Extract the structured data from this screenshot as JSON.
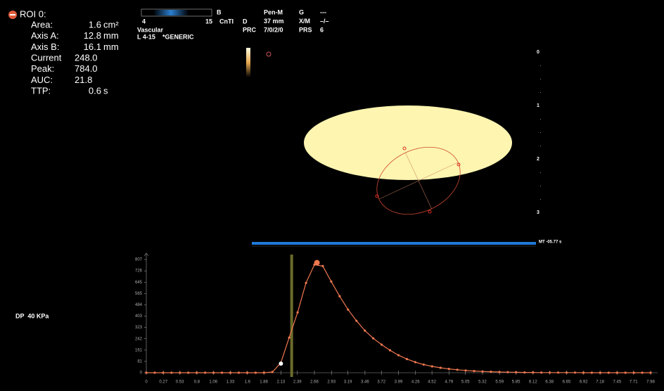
{
  "roi": {
    "title": "ROI 0:",
    "rows": [
      {
        "label": "Area:",
        "value": "1.6",
        "unit": "cm²"
      },
      {
        "label": "Axis A:",
        "value": "12.8",
        "unit": "mm"
      },
      {
        "label": "Axis B:",
        "value": "16.1",
        "unit": "mm"
      },
      {
        "label": "Current",
        "value": "248.0"
      },
      {
        "label": "Peak:",
        "value": "784.0"
      },
      {
        "label": "AUC:",
        "value": "21.8"
      },
      {
        "label": "TTP:",
        "value": "0.6",
        "unit": "s"
      }
    ]
  },
  "header": {
    "scale_min": "4",
    "scale_max": "15",
    "mode": "B",
    "contrast": "CnTI",
    "preset": "Vascular",
    "probe": "L 4-15",
    "application": "*GENERIC",
    "labels_1": [
      "D",
      "PRC"
    ],
    "values_1": [
      "Pen-M",
      "37 mm",
      "7/0/2/0"
    ],
    "labels_2": [
      "G",
      "X/M",
      "PRS"
    ],
    "values_2": [
      "---",
      "–/–",
      "6"
    ]
  },
  "depth": [
    "0",
    "1",
    "2",
    "3"
  ],
  "timeline": "MT -05.77 s",
  "pressure": "DP  40 KPa",
  "chart_data": {
    "type": "line",
    "x": [
      0,
      0.133,
      0.266,
      0.399,
      0.532,
      0.665,
      0.798,
      0.931,
      1.064,
      1.197,
      1.33,
      1.463,
      1.596,
      1.729,
      1.862,
      1.995,
      2.128,
      2.261,
      2.394,
      2.527,
      2.66,
      2.793,
      2.926,
      3.059,
      3.192,
      3.325,
      3.458,
      3.591,
      3.724,
      3.857,
      3.99,
      4.123,
      4.256,
      4.389,
      4.522,
      4.655,
      4.788,
      4.921,
      5.054,
      5.187,
      5.32,
      5.453,
      5.586,
      5.719,
      5.852,
      5.985,
      6.118,
      6.251,
      6.384,
      6.517,
      6.65,
      6.783,
      6.916,
      7.049,
      7.182,
      7.315,
      7.448,
      7.581,
      7.714,
      7.847,
      7.98
    ],
    "series": [
      {
        "color": "#f07850",
        "values": [
          0,
          0,
          0,
          0,
          0,
          0,
          0,
          0,
          0,
          0,
          0,
          0,
          0,
          0,
          0,
          5,
          70,
          250,
          430,
          640,
          770,
          760,
          650,
          545,
          450,
          370,
          300,
          245,
          200,
          160,
          125,
          97,
          75,
          58,
          45,
          35,
          27,
          21,
          16,
          12,
          9,
          7,
          5,
          4,
          3,
          2,
          2,
          1,
          1,
          1,
          1,
          1,
          0,
          0,
          0,
          0,
          0,
          0,
          0,
          0,
          0
        ]
      }
    ],
    "peak": {
      "x": 2.7,
      "y": 784
    },
    "start_point": {
      "x": 2.13,
      "y": 65
    },
    "marker_x": 2.3,
    "xlim": [
      0,
      7.98
    ],
    "ylim": [
      0,
      807
    ],
    "xticks": [
      0,
      0.27,
      0.53,
      0.8,
      1.06,
      1.33,
      1.6,
      1.86,
      2.13,
      2.39,
      2.66,
      2.93,
      3.19,
      3.46,
      3.72,
      3.99,
      4.26,
      4.52,
      4.79,
      5.05,
      5.32,
      5.59,
      5.85,
      6.12,
      6.38,
      6.65,
      6.92,
      7.18,
      7.45,
      7.71,
      7.98
    ],
    "yticks": [
      0,
      81,
      161,
      242,
      323,
      403,
      484,
      565,
      645,
      726,
      807
    ]
  }
}
